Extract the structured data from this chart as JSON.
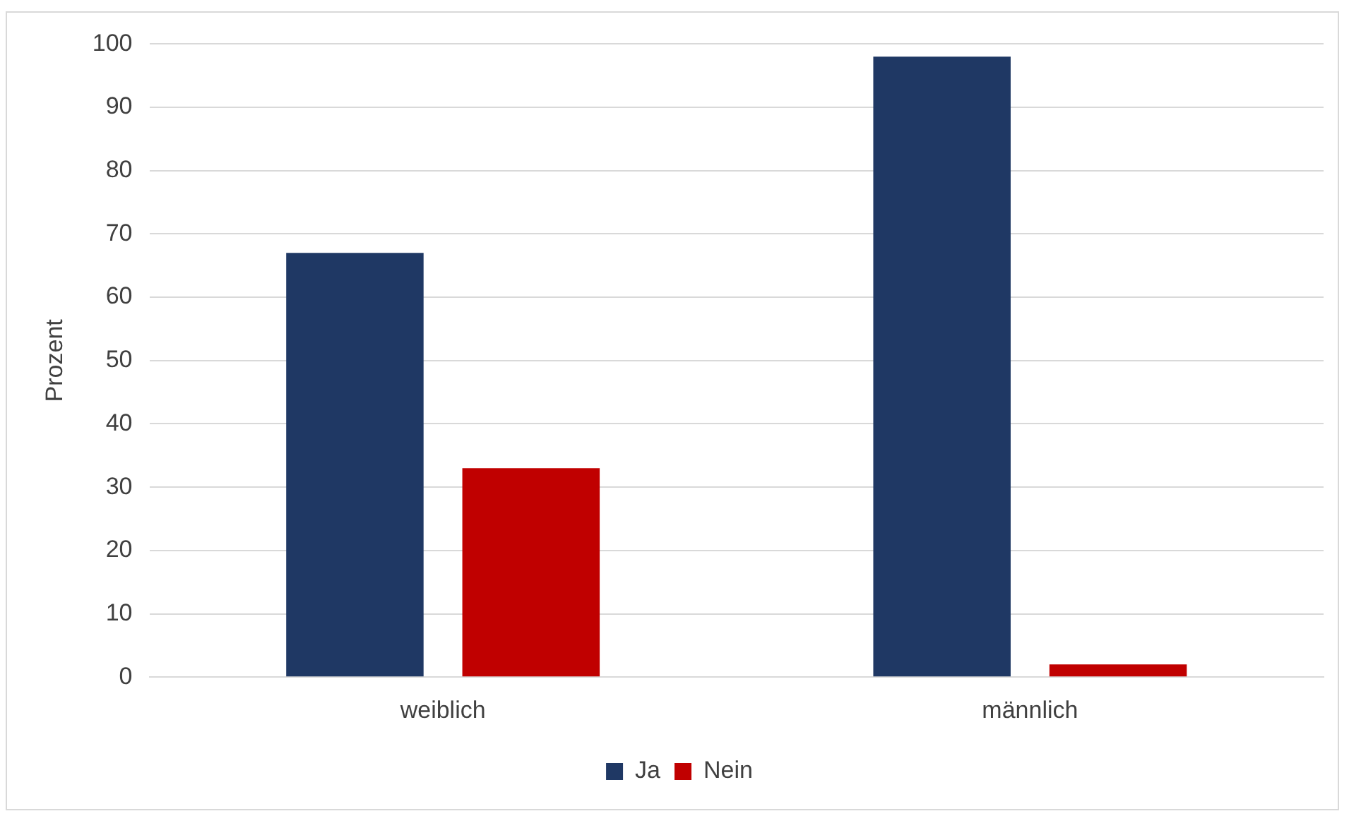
{
  "chart_data": {
    "type": "bar",
    "ylabel": "Prozent",
    "categories": [
      "weiblich",
      "männlich"
    ],
    "series": [
      {
        "name": "Ja",
        "color": "#1f3864",
        "values": [
          67,
          98
        ]
      },
      {
        "name": "Nein",
        "color": "#c00000",
        "values": [
          33,
          2
        ]
      }
    ],
    "ylim": [
      0,
      100
    ],
    "yticks": [
      0,
      10,
      20,
      30,
      40,
      50,
      60,
      70,
      80,
      90,
      100
    ],
    "grid": "y",
    "legend": "bottom"
  }
}
